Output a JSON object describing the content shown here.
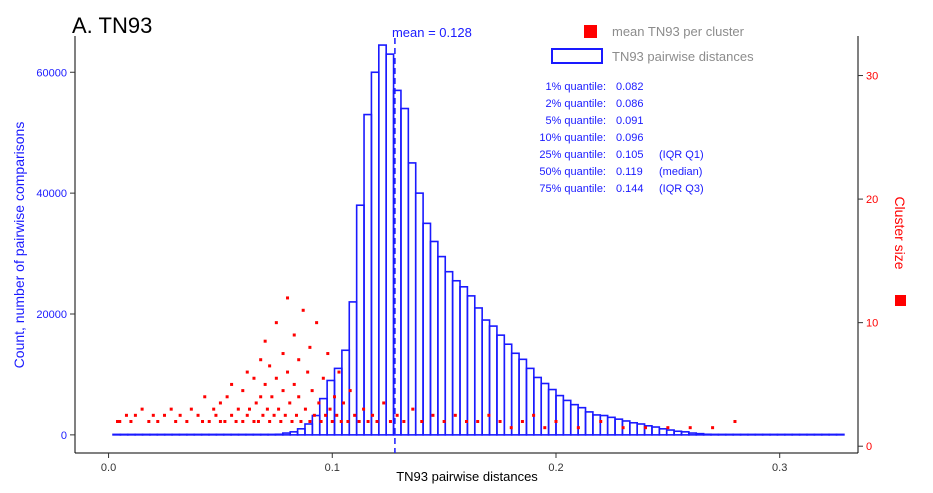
{
  "chart_data": {
    "type": "bar",
    "panel_title": "A. TN93",
    "xlabel": "TN93 pairwise distances",
    "ylabel_left": "Count, number of pairwise comparisons",
    "ylabel_right": "Cluster size",
    "xlim": [
      -0.015,
      0.335
    ],
    "ylim_left": [
      -3000,
      66000
    ],
    "ylim_right": [
      -0.55,
      33.2
    ],
    "x_ticks": [
      {
        "value": 0.0,
        "label": "0.0"
      },
      {
        "value": 0.1,
        "label": "0.1"
      },
      {
        "value": 0.2,
        "label": "0.2"
      },
      {
        "value": 0.3,
        "label": "0.3"
      }
    ],
    "y_left_ticks": [
      {
        "value": 0,
        "label": "0"
      },
      {
        "value": 20000,
        "label": "20000"
      },
      {
        "value": 40000,
        "label": "40000"
      },
      {
        "value": 60000,
        "label": "60000"
      }
    ],
    "y_right_ticks": [
      {
        "value": 0,
        "label": "0"
      },
      {
        "value": 10,
        "label": "10"
      },
      {
        "value": 20,
        "label": "20"
      },
      {
        "value": 30,
        "label": "30"
      }
    ],
    "histogram": {
      "name": "TN93 pairwise distances",
      "color": "#1a1aff",
      "bin_width": 0.0033,
      "bin_start": 0.002,
      "counts": [
        0,
        0,
        0,
        0,
        0,
        0,
        0,
        0,
        0,
        0,
        0,
        0,
        0,
        0,
        0,
        0,
        0,
        0,
        0,
        0,
        0,
        0,
        100,
        300,
        500,
        1000,
        1800,
        3200,
        6000,
        9000,
        11000,
        14000,
        22000,
        38000,
        53000,
        60000,
        64500,
        63000,
        57000,
        54000,
        45000,
        40000,
        35000,
        32000,
        29500,
        27000,
        25500,
        24500,
        23000,
        21000,
        19000,
        18000,
        16500,
        15000,
        13500,
        12500,
        11000,
        9500,
        8500,
        7500,
        6500,
        5700,
        5000,
        4500,
        3800,
        3300,
        3200,
        2900,
        2600,
        2300,
        2000,
        1800,
        1500,
        1300,
        1000,
        800,
        600,
        500,
        300,
        200,
        100,
        50,
        20,
        10,
        0,
        0,
        0,
        0,
        0,
        0,
        0,
        0,
        0,
        0,
        0,
        0,
        0,
        0,
        0
      ]
    },
    "mean_line": {
      "value": 0.128,
      "label": "mean = 0.128",
      "color": "#1a1aff"
    },
    "scatter": {
      "name": "mean TN93 per cluster",
      "color": "#ff0000",
      "points": [
        [
          0.004,
          2
        ],
        [
          0.005,
          2
        ],
        [
          0.008,
          2.5
        ],
        [
          0.01,
          2
        ],
        [
          0.012,
          2.5
        ],
        [
          0.015,
          3
        ],
        [
          0.018,
          2
        ],
        [
          0.02,
          2.5
        ],
        [
          0.022,
          2
        ],
        [
          0.025,
          2.5
        ],
        [
          0.028,
          3
        ],
        [
          0.03,
          2
        ],
        [
          0.032,
          2.5
        ],
        [
          0.035,
          2
        ],
        [
          0.037,
          3
        ],
        [
          0.04,
          2.5
        ],
        [
          0.042,
          2
        ],
        [
          0.043,
          4
        ],
        [
          0.045,
          2
        ],
        [
          0.047,
          3
        ],
        [
          0.048,
          2.5
        ],
        [
          0.05,
          2
        ],
        [
          0.05,
          3.5
        ],
        [
          0.052,
          2
        ],
        [
          0.053,
          4
        ],
        [
          0.055,
          2.5
        ],
        [
          0.055,
          5
        ],
        [
          0.057,
          2
        ],
        [
          0.058,
          3
        ],
        [
          0.06,
          2
        ],
        [
          0.06,
          4.5
        ],
        [
          0.062,
          2.5
        ],
        [
          0.062,
          6
        ],
        [
          0.063,
          3
        ],
        [
          0.065,
          2
        ],
        [
          0.065,
          5.5
        ],
        [
          0.066,
          3.5
        ],
        [
          0.067,
          2
        ],
        [
          0.068,
          7
        ],
        [
          0.068,
          4
        ],
        [
          0.069,
          2.5
        ],
        [
          0.07,
          5
        ],
        [
          0.07,
          8.5
        ],
        [
          0.071,
          3
        ],
        [
          0.072,
          2
        ],
        [
          0.072,
          6.5
        ],
        [
          0.073,
          4
        ],
        [
          0.074,
          2.5
        ],
        [
          0.075,
          5.5
        ],
        [
          0.075,
          10
        ],
        [
          0.076,
          3
        ],
        [
          0.077,
          2
        ],
        [
          0.078,
          7.5
        ],
        [
          0.078,
          4.5
        ],
        [
          0.079,
          2.5
        ],
        [
          0.08,
          6
        ],
        [
          0.08,
          12
        ],
        [
          0.081,
          3.5
        ],
        [
          0.082,
          2
        ],
        [
          0.083,
          9
        ],
        [
          0.083,
          5
        ],
        [
          0.084,
          2.5
        ],
        [
          0.085,
          7
        ],
        [
          0.085,
          4
        ],
        [
          0.086,
          2
        ],
        [
          0.087,
          11
        ],
        [
          0.088,
          3
        ],
        [
          0.089,
          6
        ],
        [
          0.09,
          2
        ],
        [
          0.09,
          8
        ],
        [
          0.091,
          4.5
        ],
        [
          0.092,
          2.5
        ],
        [
          0.093,
          10
        ],
        [
          0.094,
          3.5
        ],
        [
          0.095,
          2
        ],
        [
          0.096,
          5.5
        ],
        [
          0.097,
          2.5
        ],
        [
          0.098,
          7.5
        ],
        [
          0.099,
          3
        ],
        [
          0.1,
          2
        ],
        [
          0.101,
          4
        ],
        [
          0.102,
          2.5
        ],
        [
          0.103,
          6
        ],
        [
          0.104,
          2
        ],
        [
          0.105,
          3.5
        ],
        [
          0.107,
          2
        ],
        [
          0.108,
          4.5
        ],
        [
          0.11,
          2.5
        ],
        [
          0.112,
          2
        ],
        [
          0.114,
          3
        ],
        [
          0.116,
          2
        ],
        [
          0.118,
          2.5
        ],
        [
          0.12,
          2
        ],
        [
          0.123,
          3.5
        ],
        [
          0.126,
          2
        ],
        [
          0.129,
          2.5
        ],
        [
          0.132,
          2
        ],
        [
          0.136,
          3
        ],
        [
          0.14,
          2
        ],
        [
          0.145,
          2.5
        ],
        [
          0.15,
          2
        ],
        [
          0.155,
          2.5
        ],
        [
          0.16,
          2
        ],
        [
          0.165,
          2
        ],
        [
          0.17,
          2.5
        ],
        [
          0.175,
          2
        ],
        [
          0.18,
          1.5
        ],
        [
          0.185,
          2
        ],
        [
          0.19,
          2.5
        ],
        [
          0.195,
          1.5
        ],
        [
          0.2,
          2
        ],
        [
          0.21,
          1.5
        ],
        [
          0.22,
          2
        ],
        [
          0.23,
          1.5
        ],
        [
          0.24,
          1.5
        ],
        [
          0.25,
          1.5
        ],
        [
          0.26,
          1.5
        ],
        [
          0.27,
          1.5
        ],
        [
          0.28,
          2
        ]
      ]
    },
    "quantiles": [
      {
        "label": "1% quantile:",
        "value": "0.082",
        "note": ""
      },
      {
        "label": "2% quantile:",
        "value": "0.086",
        "note": ""
      },
      {
        "label": "5% quantile:",
        "value": "0.091",
        "note": ""
      },
      {
        "label": "10% quantile:",
        "value": "0.096",
        "note": ""
      },
      {
        "label": "25% quantile:",
        "value": "0.105",
        "note": "(IQR Q1)"
      },
      {
        "label": "50% quantile:",
        "value": "0.119",
        "note": "(median)"
      },
      {
        "label": "75% quantile:",
        "value": "0.144",
        "note": "(IQR Q3)"
      }
    ],
    "legend": [
      {
        "label": "mean TN93 per cluster",
        "symbol": "filled-square",
        "color": "#ff0000"
      },
      {
        "label": "TN93 pairwise distances",
        "symbol": "open-rect",
        "color": "#1a1aff"
      }
    ],
    "colors": {
      "left_axis": "#1a1aff",
      "right_axis": "#ff0000",
      "title": "#000000"
    }
  }
}
